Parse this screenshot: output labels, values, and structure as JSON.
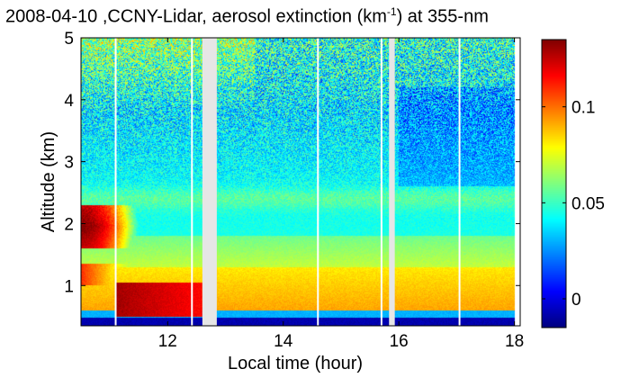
{
  "chart_data": {
    "type": "heatmap",
    "title_prefix": "2008-04-10 ,CCNY-Lidar, aerosol extinction (km",
    "title_exponent": "-1",
    "title_suffix": ") at 355-nm",
    "xlabel": "Local time (hour)",
    "ylabel": "Altitude (km)",
    "xlim": [
      10.5,
      18.1
    ],
    "ylim": [
      0.35,
      5.0
    ],
    "x_ticks": [
      {
        "value": 12,
        "label": "12"
      },
      {
        "value": 14,
        "label": "14"
      },
      {
        "value": 16,
        "label": "16"
      },
      {
        "value": 18,
        "label": "18"
      }
    ],
    "y_ticks": [
      {
        "value": 1,
        "label": "1"
      },
      {
        "value": 2,
        "label": "2"
      },
      {
        "value": 3,
        "label": "3"
      },
      {
        "value": 4,
        "label": "4"
      },
      {
        "value": 5,
        "label": "5"
      }
    ],
    "colorbar": {
      "range": [
        -0.015,
        0.135
      ],
      "ticks": [
        {
          "value": 0,
          "label": "0"
        },
        {
          "value": 0.05,
          "label": "0.05"
        },
        {
          "value": 0.1,
          "label": "0.1"
        }
      ]
    },
    "data_gaps_hours": [
      [
        12.6,
        12.85
      ],
      [
        15.83,
        15.93
      ]
    ],
    "white_line_hours": [
      11.1,
      12.42,
      14.6,
      15.7,
      17.05
    ],
    "features": [
      {
        "name": "boundary layer",
        "x_start": 12.85,
        "x_end": 18.0,
        "altitude_top_km": 1.3,
        "value": 0.09
      },
      {
        "name": "residual aerosol layer",
        "x_start": 10.5,
        "x_end": 11.2,
        "altitude_bottom_km": 1.6,
        "altitude_top_km": 2.3,
        "value": 0.13
      },
      {
        "name": "elevated layer",
        "x_start": 12.85,
        "x_end": 18.0,
        "altitude_bottom_km": 2.2,
        "altitude_top_km": 2.6,
        "value": 0.055
      }
    ]
  }
}
